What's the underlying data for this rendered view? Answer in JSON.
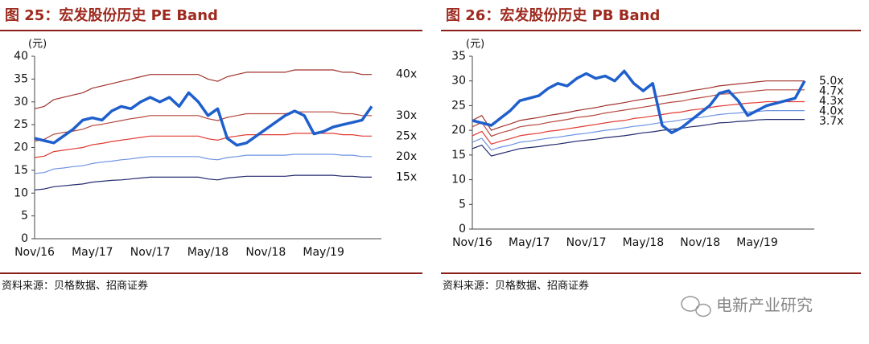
{
  "chart_data": [
    {
      "type": "line",
      "title": "图 25：宏发股份历史 PE Band",
      "y_label": "(元)",
      "source": "资料来源：贝格数据、招商证券",
      "categories": [
        "Nov/16",
        null,
        null,
        null,
        null,
        null,
        "May/17",
        null,
        null,
        null,
        null,
        null,
        "Nov/17",
        null,
        null,
        null,
        null,
        null,
        "May/18",
        null,
        null,
        null,
        null,
        null,
        "Nov/18",
        null,
        null,
        null,
        null,
        null,
        "May/19",
        null,
        null,
        null,
        null,
        null
      ],
      "ylim": [
        0,
        40
      ],
      "yticks": [
        0,
        5,
        10,
        15,
        20,
        25,
        30,
        35,
        40
      ],
      "series": [
        {
          "name": "40x",
          "color": "#a0322c",
          "values": [
            28.5,
            29,
            30.5,
            31,
            31.5,
            32,
            33,
            33.5,
            34,
            34.5,
            35,
            35.5,
            36,
            36,
            36,
            36,
            36,
            36,
            35,
            34.5,
            35.5,
            36,
            36.5,
            36.5,
            36.5,
            36.5,
            36.5,
            37,
            37,
            37,
            37,
            37,
            36.5,
            36.5,
            36,
            36
          ]
        },
        {
          "name": "30x",
          "color": "#b5473d",
          "values": [
            21.4,
            21.8,
            22.9,
            23.3,
            23.6,
            24,
            24.8,
            25.1,
            25.5,
            25.9,
            26.3,
            26.6,
            27,
            27,
            27,
            27,
            27,
            27,
            26.3,
            25.9,
            26.6,
            27,
            27.4,
            27.4,
            27.4,
            27.4,
            27.4,
            27.8,
            27.8,
            27.8,
            27.8,
            27.8,
            27.4,
            27.4,
            27,
            27
          ]
        },
        {
          "name": "25x",
          "color": "#e23a33",
          "values": [
            17.8,
            18.1,
            19.1,
            19.4,
            19.7,
            20,
            20.6,
            20.9,
            21.3,
            21.6,
            21.9,
            22.2,
            22.5,
            22.5,
            22.5,
            22.5,
            22.5,
            22.5,
            21.9,
            21.6,
            22.2,
            22.5,
            22.8,
            22.8,
            22.8,
            22.8,
            22.8,
            23.1,
            23.1,
            23.1,
            23.1,
            23.1,
            22.8,
            22.8,
            22.5,
            22.5
          ]
        },
        {
          "name": "20x",
          "color": "#6f93e3",
          "values": [
            14.3,
            14.5,
            15.3,
            15.5,
            15.8,
            16,
            16.5,
            16.8,
            17,
            17.3,
            17.5,
            17.8,
            18,
            18,
            18,
            18,
            18,
            18,
            17.5,
            17.3,
            17.8,
            18,
            18.3,
            18.3,
            18.3,
            18.3,
            18.3,
            18.5,
            18.5,
            18.5,
            18.5,
            18.5,
            18.3,
            18.3,
            18,
            18
          ]
        },
        {
          "name": "15x",
          "color": "#222a6e",
          "values": [
            10.7,
            10.9,
            11.4,
            11.6,
            11.8,
            12,
            12.4,
            12.6,
            12.8,
            12.9,
            13.1,
            13.3,
            13.5,
            13.5,
            13.5,
            13.5,
            13.5,
            13.5,
            13.1,
            12.9,
            13.3,
            13.5,
            13.7,
            13.7,
            13.7,
            13.7,
            13.7,
            13.9,
            13.9,
            13.9,
            13.9,
            13.9,
            13.7,
            13.7,
            13.5,
            13.5
          ]
        },
        {
          "color": "#1f5fcc",
          "values": [
            22,
            21.5,
            21,
            22.5,
            24,
            26,
            26.5,
            26,
            28,
            29,
            28.5,
            30,
            31,
            30,
            31,
            29,
            32,
            30,
            27,
            28.5,
            22,
            20.5,
            21,
            22.5,
            24,
            25.5,
            27,
            28,
            27,
            23,
            23.5,
            24.5,
            25,
            25.5,
            26,
            29
          ]
        }
      ]
    },
    {
      "type": "line",
      "title": "图 26：宏发股份历史 PB Band",
      "y_label": "(元)",
      "source": "资料来源：贝格数据、招商证券",
      "categories": [
        "Nov/16",
        null,
        null,
        null,
        null,
        null,
        "May/17",
        null,
        null,
        null,
        null,
        null,
        "Nov/17",
        null,
        null,
        null,
        null,
        null,
        "May/18",
        null,
        null,
        null,
        null,
        null,
        "Nov/18",
        null,
        null,
        null,
        null,
        null,
        "May/19",
        null,
        null,
        null,
        null,
        null
      ],
      "ylim": [
        0,
        35
      ],
      "yticks": [
        0,
        5,
        10,
        15,
        20,
        25,
        30,
        35
      ],
      "series": [
        {
          "name": "5.0x",
          "color": "#a0322c",
          "values": [
            22,
            23,
            20,
            20.7,
            21.3,
            22,
            22.3,
            22.6,
            23,
            23.3,
            23.6,
            24,
            24.3,
            24.6,
            25,
            25.3,
            25.6,
            26,
            26.3,
            26.6,
            27,
            27.3,
            27.6,
            28,
            28.3,
            28.6,
            29,
            29.2,
            29.4,
            29.6,
            29.8,
            30,
            30,
            30,
            30,
            30
          ]
        },
        {
          "name": "4.7x",
          "color": "#b5473d",
          "values": [
            20.7,
            21.6,
            18.8,
            19.5,
            20,
            20.7,
            21,
            21.2,
            21.6,
            21.9,
            22.2,
            22.6,
            22.8,
            23.1,
            23.5,
            23.8,
            24.1,
            24.4,
            24.7,
            25,
            25.4,
            25.7,
            25.9,
            26.3,
            26.6,
            26.9,
            27.3,
            27.4,
            27.6,
            27.8,
            28,
            28.2,
            28.2,
            28.2,
            28.2,
            28.2
          ]
        },
        {
          "name": "4.3x",
          "color": "#e23a33",
          "values": [
            18.9,
            19.8,
            17.2,
            17.8,
            18.3,
            18.9,
            19.2,
            19.4,
            19.8,
            20,
            20.3,
            20.6,
            20.9,
            21.2,
            21.5,
            21.8,
            22,
            22.4,
            22.6,
            22.9,
            23.2,
            23.5,
            23.7,
            24.1,
            24.3,
            24.6,
            24.9,
            25.1,
            25.3,
            25.5,
            25.6,
            25.8,
            25.8,
            25.8,
            25.8,
            25.8
          ]
        },
        {
          "name": "4.0x",
          "color": "#6f93e3",
          "values": [
            17.6,
            18.4,
            16,
            16.6,
            17,
            17.6,
            17.8,
            18.1,
            18.4,
            18.6,
            18.9,
            19.2,
            19.4,
            19.7,
            20,
            20.2,
            20.5,
            20.8,
            21,
            21.3,
            21.6,
            21.8,
            22.1,
            22.4,
            22.6,
            22.9,
            23.2,
            23.4,
            23.5,
            23.7,
            23.8,
            24,
            24,
            24,
            24,
            24
          ]
        },
        {
          "name": "3.7x",
          "color": "#222a6e",
          "values": [
            16.3,
            17,
            14.8,
            15.3,
            15.8,
            16.3,
            16.5,
            16.7,
            17,
            17.2,
            17.5,
            17.8,
            18,
            18.2,
            18.5,
            18.7,
            18.9,
            19.2,
            19.5,
            19.7,
            20,
            20.2,
            20.4,
            20.7,
            20.9,
            21.2,
            21.5,
            21.6,
            21.8,
            21.9,
            22.1,
            22.2,
            22.2,
            22.2,
            22.2,
            22.2
          ]
        },
        {
          "color": "#1f5fcc",
          "values": [
            22,
            21.5,
            21,
            22.5,
            24,
            26,
            26.5,
            27,
            28.5,
            29.5,
            29,
            30.5,
            31.5,
            30.5,
            31,
            30,
            32,
            29.5,
            28,
            29.5,
            21,
            19.5,
            20.5,
            22,
            23.5,
            25,
            27.5,
            28,
            26,
            23,
            24,
            25,
            25.5,
            26,
            26.5,
            30
          ]
        }
      ]
    }
  ],
  "watermark": "电新产业研究"
}
